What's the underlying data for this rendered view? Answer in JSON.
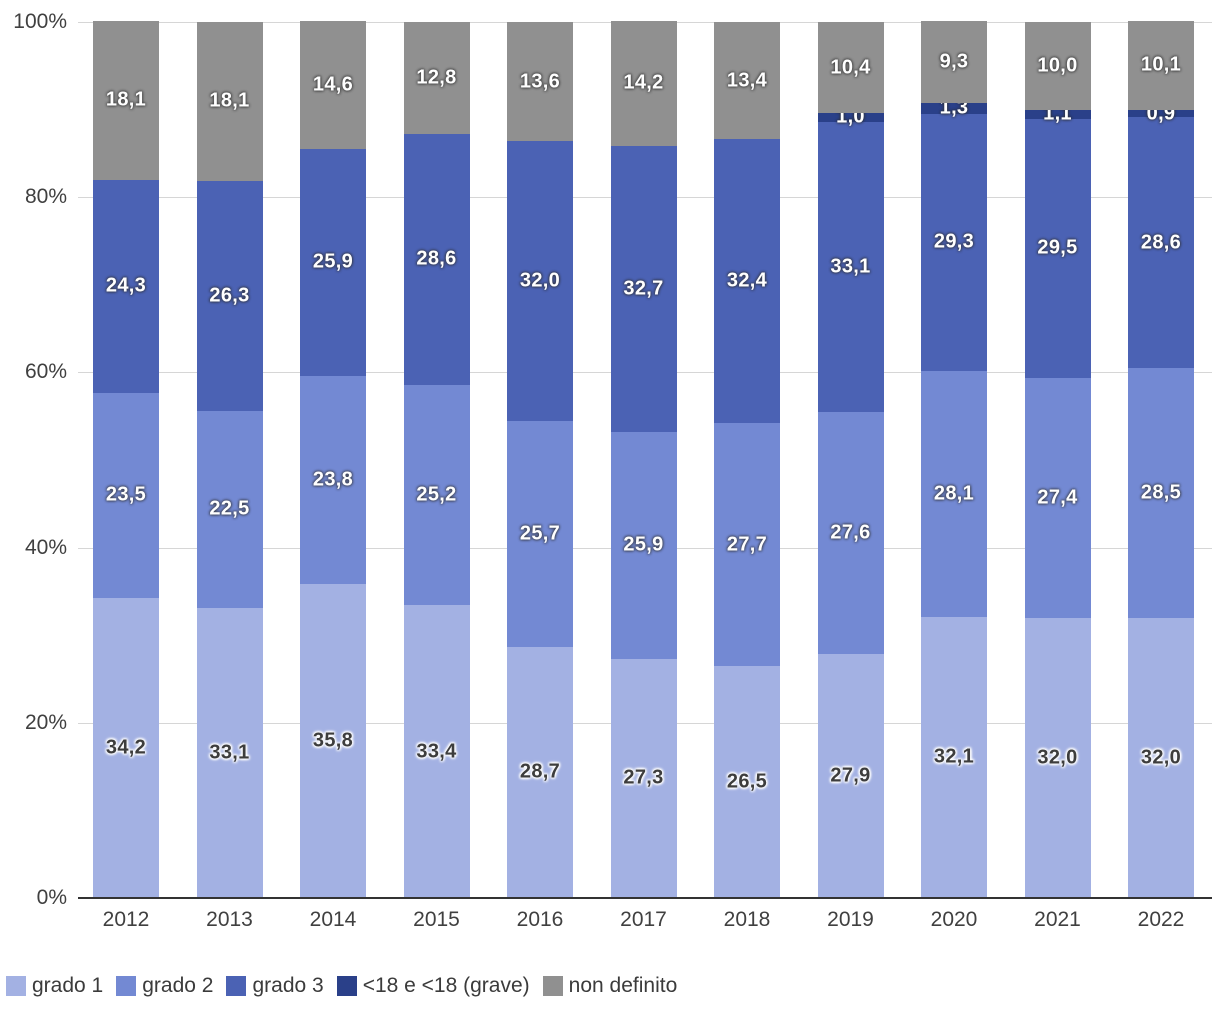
{
  "chart_data": {
    "type": "bar",
    "stacked": true,
    "stack_mode": "percent",
    "orientation": "vertical",
    "title": "",
    "xlabel": "",
    "ylabel": "",
    "decimal_separator": ",",
    "grid": true,
    "background_color": "#ffffff",
    "gridline_color": "#d6d6d6",
    "axis_line_color": "#333333",
    "axis_text_color": "#404040",
    "categories": [
      "2012",
      "2013",
      "2014",
      "2015",
      "2016",
      "2017",
      "2018",
      "2019",
      "2020",
      "2021",
      "2022"
    ],
    "series": [
      {
        "name": "grado 1",
        "color": "#a3b1e3",
        "label_color": "#3d3d3d",
        "values": [
          34.2,
          33.1,
          35.8,
          33.4,
          28.7,
          27.3,
          26.5,
          27.9,
          32.1,
          32.0,
          32.0
        ]
      },
      {
        "name": "grado 2",
        "color": "#7389d3",
        "label_color": "#ffffff",
        "values": [
          23.5,
          22.5,
          23.8,
          25.2,
          25.7,
          25.9,
          27.7,
          27.6,
          28.1,
          27.4,
          28.5
        ]
      },
      {
        "name": "grado 3",
        "color": "#4b62b4",
        "label_color": "#ffffff",
        "values": [
          24.3,
          26.3,
          25.9,
          28.6,
          32.0,
          32.7,
          32.4,
          33.1,
          29.3,
          29.5,
          28.6
        ]
      },
      {
        "name": "<18 e <18 (grave)",
        "color": "#2a4089",
        "label_color": "#ffffff",
        "values": [
          0,
          0,
          0,
          0,
          0,
          0,
          0,
          1.0,
          1.3,
          1.1,
          0.9
        ]
      },
      {
        "name": "non definito",
        "color": "#909090",
        "label_color": "#ffffff",
        "values": [
          18.1,
          18.1,
          14.6,
          12.8,
          13.6,
          14.2,
          13.4,
          10.4,
          9.3,
          10.0,
          10.1
        ]
      }
    ],
    "y_axis": {
      "min": 0,
      "max": 100,
      "ticks": [
        {
          "label": "0%",
          "value": 0
        },
        {
          "label": "20%",
          "value": 20
        },
        {
          "label": "40%",
          "value": 40
        },
        {
          "label": "60%",
          "value": 60
        },
        {
          "label": "80%",
          "value": 80
        },
        {
          "label": "100%",
          "value": 100
        }
      ]
    },
    "legend": {
      "position": "bottom",
      "entries": [
        "grado 1",
        "grado 2",
        "grado 3",
        "<18 e <18 (grave)",
        "non definito"
      ]
    }
  }
}
